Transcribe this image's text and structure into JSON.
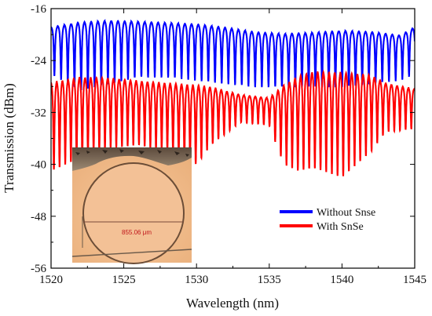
{
  "chart_data": {
    "type": "line",
    "xlabel": "Wavelength (nm)",
    "ylabel": "Transmission (dBm)",
    "xlim": [
      1520,
      1545
    ],
    "ylim": [
      -56,
      -16
    ],
    "x_ticks": [
      1520,
      1525,
      1530,
      1535,
      1540,
      1545
    ],
    "y_ticks": [
      -16,
      -24,
      -32,
      -40,
      -48,
      -56
    ],
    "x_tick_labels": [
      "1520",
      "1525",
      "1530",
      "1535",
      "1540",
      "1545"
    ],
    "y_tick_labels": [
      "-16",
      "-24",
      "-32",
      "-40",
      "-48",
      "-56"
    ],
    "legend_position": "lower-right",
    "series": [
      {
        "name": "Without Snse",
        "color": "#0000ff",
        "fsr_nm": 0.46,
        "envelope": {
          "x": [
            1520,
            1522,
            1524,
            1526,
            1528,
            1530,
            1532,
            1534,
            1536,
            1538,
            1540,
            1542,
            1544,
            1545
          ],
          "peak": [
            -18.5,
            -17.6,
            -17.4,
            -17.6,
            -17.8,
            -18.0,
            -18.5,
            -19.2,
            -19.5,
            -19.3,
            -19.0,
            -19.2,
            -19.8,
            -18.5
          ],
          "dip": [
            -26.0,
            -28.5,
            -27.5,
            -26.5,
            -26.5,
            -27.0,
            -27.5,
            -28.0,
            -28.0,
            -28.0,
            -28.0,
            -27.5,
            -27.0,
            -26.0
          ]
        }
      },
      {
        "name": "With SnSe",
        "color": "#ff0000",
        "fsr_nm": 0.39,
        "envelope": {
          "x": [
            1520,
            1522,
            1524,
            1526,
            1528,
            1530,
            1531,
            1533,
            1535,
            1536,
            1537,
            1538,
            1540,
            1542,
            1543,
            1545
          ],
          "peak": [
            -26.5,
            -25.8,
            -26.0,
            -26.5,
            -26.8,
            -27.0,
            -27.5,
            -29.0,
            -29.5,
            -27.0,
            -25.5,
            -24.8,
            -24.8,
            -25.5,
            -27.0,
            -28.0
          ],
          "dip": [
            -41.0,
            -39.0,
            -37.5,
            -37.0,
            -38.0,
            -40.0,
            -37.0,
            -33.5,
            -34.0,
            -40.0,
            -41.0,
            -40.5,
            -42.0,
            -38.0,
            -35.0,
            -34.5
          ]
        }
      }
    ],
    "inset": {
      "scale_text": "855.06 μm"
    }
  }
}
